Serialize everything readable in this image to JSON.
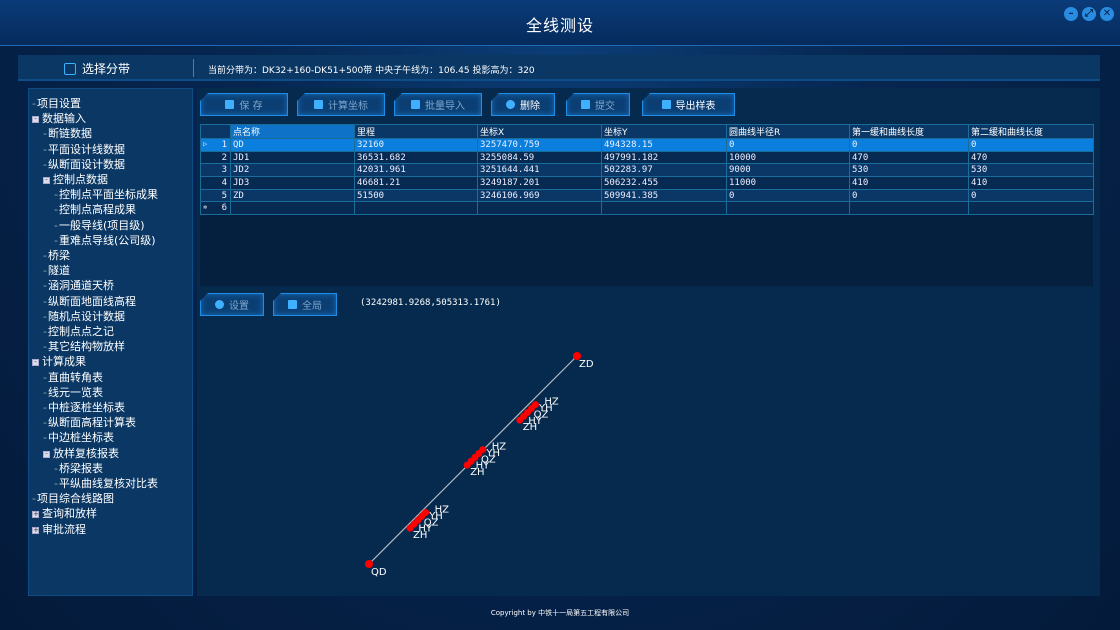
{
  "window": {
    "title": "全线测设",
    "controls": [
      "minimize",
      "maximize",
      "close"
    ]
  },
  "topbar": {
    "select_zone_label": "选择分带",
    "zone_info": "当前分带为：DK32+160-DK51+500带 中央子午线为：106.45 投影高为：320"
  },
  "sidebar": {
    "items": [
      {
        "label": "项目设置",
        "level": 0,
        "expander": null
      },
      {
        "label": "数据输入",
        "level": 0,
        "expander": "-"
      },
      {
        "label": "断链数据",
        "level": 1,
        "expander": null
      },
      {
        "label": "平面设计线数据",
        "level": 1,
        "expander": null
      },
      {
        "label": "纵断面设计数据",
        "level": 1,
        "expander": null
      },
      {
        "label": "控制点数据",
        "level": 1,
        "expander": "-"
      },
      {
        "label": "控制点平面坐标成果",
        "level": 2,
        "expander": null
      },
      {
        "label": "控制点高程成果",
        "level": 2,
        "expander": null
      },
      {
        "label": "一般导线(项目级)",
        "level": 2,
        "expander": null
      },
      {
        "label": "重难点导线(公司级)",
        "level": 2,
        "expander": null
      },
      {
        "label": "桥梁",
        "level": 1,
        "expander": null
      },
      {
        "label": "隧道",
        "level": 1,
        "expander": null
      },
      {
        "label": "涵洞通道天桥",
        "level": 1,
        "expander": null
      },
      {
        "label": "纵断面地面线高程",
        "level": 1,
        "expander": null
      },
      {
        "label": "随机点设计数据",
        "level": 1,
        "expander": null
      },
      {
        "label": "控制点点之记",
        "level": 1,
        "expander": null
      },
      {
        "label": "其它结构物放样",
        "level": 1,
        "expander": null
      },
      {
        "label": "计算成果",
        "level": 0,
        "expander": "-"
      },
      {
        "label": "直曲转角表",
        "level": 1,
        "expander": null
      },
      {
        "label": "线元一览表",
        "level": 1,
        "expander": null
      },
      {
        "label": "中桩逐桩坐标表",
        "level": 1,
        "expander": null
      },
      {
        "label": "纵断面高程计算表",
        "level": 1,
        "expander": null
      },
      {
        "label": "中边桩坐标表",
        "level": 1,
        "expander": null
      },
      {
        "label": "放样复核报表",
        "level": 1,
        "expander": "-"
      },
      {
        "label": "桥梁报表",
        "level": 2,
        "expander": null
      },
      {
        "label": "平纵曲线复核对比表",
        "level": 2,
        "expander": null
      },
      {
        "label": "项目综合线路图",
        "level": 0,
        "expander": null
      },
      {
        "label": "查询和放样",
        "level": 0,
        "expander": "+"
      },
      {
        "label": "审批流程",
        "level": 0,
        "expander": "+"
      }
    ]
  },
  "toolbar": {
    "save": "保 存",
    "calc": "计算坐标",
    "import": "批量导入",
    "delete": "删除",
    "submit": "提交",
    "export": "导出样表"
  },
  "grid": {
    "columns": [
      "点名称",
      "里程",
      "坐标X",
      "坐标Y",
      "圆曲线半径R",
      "第一缓和曲线长度",
      "第二缓和曲线长度"
    ],
    "rows": [
      [
        "1",
        "QD",
        "32160",
        "3257470.759",
        "494328.15",
        "0",
        "0",
        "0"
      ],
      [
        "2",
        "JD1",
        "36531.682",
        "3255084.59",
        "497991.182",
        "10000",
        "470",
        "470"
      ],
      [
        "3",
        "JD2",
        "42031.961",
        "3251644.441",
        "502283.97",
        "9000",
        "530",
        "530"
      ],
      [
        "4",
        "JD3",
        "46681.21",
        "3249187.201",
        "506232.455",
        "11000",
        "410",
        "410"
      ],
      [
        "5",
        "ZD",
        "51500",
        "3246106.969",
        "509941.385",
        "0",
        "0",
        "0"
      ],
      [
        "6",
        "",
        "",
        "",
        "",
        "",
        "",
        ""
      ]
    ]
  },
  "plot_toolbar": {
    "settings": "设置",
    "full_extent": "全局",
    "cursor_coord": "(3242981.9268,505313.1761)"
  },
  "plot": {
    "curve_point_labels": [
      "ZH",
      "HY",
      "QZ",
      "YH",
      "HZ"
    ],
    "point_color": "#ff0000",
    "line_color": "#b0b8c0"
  },
  "footer": {
    "copyright": "Copyright by 中铁十一局第五工程有限公司"
  }
}
